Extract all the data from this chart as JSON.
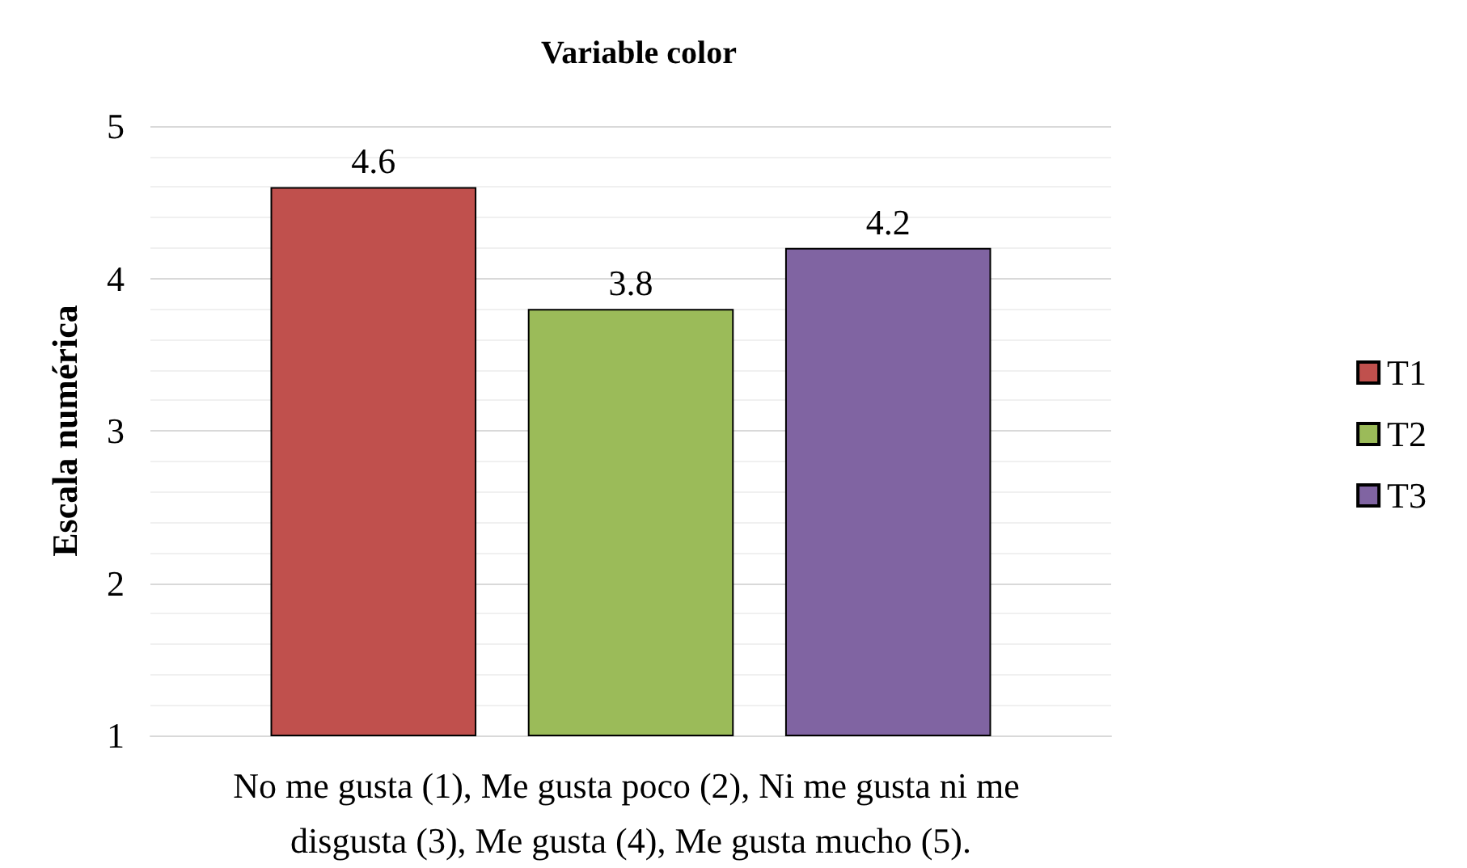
{
  "chart_data": {
    "type": "bar",
    "title": "Variable color",
    "ylabel": "Escala numérica",
    "categories": [
      "No me gusta (1), Me gusta poco (2), Ni me gusta ni me disgusta (3), Me gusta (4), Me gusta mucho (5)."
    ],
    "series": [
      {
        "name": "T1",
        "color": "#c0504d",
        "values": [
          4.6
        ]
      },
      {
        "name": "T2",
        "color": "#9bbb59",
        "values": [
          3.8
        ]
      },
      {
        "name": "T3",
        "color": "#8064a2",
        "values": [
          4.2
        ]
      }
    ],
    "ylim": [
      1,
      5
    ],
    "yticks": [
      1,
      2,
      3,
      4,
      5
    ],
    "grid": "y",
    "legend": "right",
    "data_labels": true
  }
}
